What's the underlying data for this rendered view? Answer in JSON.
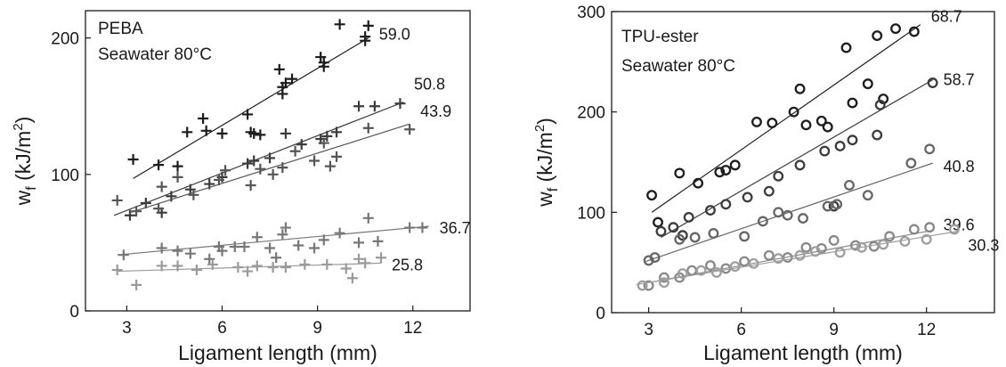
{
  "chart_data": [
    {
      "type": "scatter",
      "panel_text": [
        "PEBA",
        "Seawater 80°C"
      ],
      "xlabel": "Ligament length (mm)",
      "ylabel_main": "w",
      "ylabel_sub": "f",
      "ylabel_unit_pre": " (kJ/m",
      "ylabel_unit_sup": "2",
      "ylabel_unit_post": ")",
      "xlim": [
        1.7,
        13.8
      ],
      "ylim": [
        0,
        220
      ],
      "xticks": [
        3,
        6,
        9,
        12
      ],
      "yticks": [
        0,
        100,
        200
      ],
      "marker": "plus",
      "series": [
        {
          "name": "59.0",
          "color": "#1c1c1c",
          "x": [
            3.2,
            4.0,
            4.6,
            4.9,
            5.4,
            5.5,
            6.0,
            6.8,
            6.9,
            7.0,
            7.2,
            7.8,
            7.9,
            7.9,
            8.0,
            8.2,
            9.1,
            9.2,
            9.2,
            9.7,
            10.5,
            10.5,
            10.6
          ],
          "y": [
            111,
            107,
            106,
            131,
            141,
            132,
            130,
            144,
            131,
            130,
            129,
            177,
            159,
            164,
            167,
            170,
            186,
            182,
            179,
            210,
            201,
            198,
            209
          ],
          "fit": [
            [
              3.2,
              97
            ],
            [
              10.6,
              200
            ]
          ]
        },
        {
          "name": "50.8",
          "color": "#3c3c3c",
          "x": [
            3.1,
            3.6,
            4.1,
            4.4,
            5.0,
            5.6,
            6.0,
            6.8,
            7.0,
            7.5,
            8.0,
            8.5,
            9.1,
            9.3,
            9.6,
            10.3,
            10.8,
            11.6
          ],
          "y": [
            70,
            79,
            72,
            84,
            89,
            93,
            98,
            108,
            110,
            112,
            130,
            122,
            126,
            128,
            131,
            150,
            150,
            152
          ],
          "fit": [
            [
              2.6,
              70
            ],
            [
              11.7,
              153
            ]
          ]
        },
        {
          "name": "43.9",
          "color": "#555555",
          "x": [
            2.7,
            3.3,
            4.0,
            4.1,
            4.6,
            5.1,
            5.9,
            6.1,
            6.9,
            7.2,
            7.6,
            7.9,
            8.3,
            8.9,
            9.2,
            9.4,
            9.6,
            10.6,
            11.9
          ],
          "y": [
            81,
            73,
            75,
            91,
            98,
            85,
            96,
            103,
            92,
            104,
            100,
            105,
            117,
            110,
            123,
            106,
            113,
            134,
            133
          ],
          "fit": [
            [
              3.1,
              72
            ],
            [
              11.9,
              137
            ]
          ]
        },
        {
          "name": "36.7",
          "color": "#777777",
          "x": [
            2.9,
            4.1,
            4.6,
            5.0,
            5.6,
            5.9,
            6.0,
            6.4,
            6.7,
            7.1,
            7.5,
            7.7,
            7.9,
            8.0,
            8.4,
            8.9,
            9.2,
            9.7,
            10.3,
            10.6,
            10.9,
            11.9,
            12.3
          ],
          "y": [
            41,
            46,
            44,
            42,
            38,
            47,
            44,
            47,
            47,
            54,
            46,
            39,
            56,
            61,
            48,
            46,
            52,
            57,
            50,
            68,
            51,
            61,
            61
          ],
          "fit": [
            [
              2.7,
              41
            ],
            [
              12.5,
              62
            ]
          ]
        },
        {
          "name": "25.8",
          "color": "#9a9a9a",
          "x": [
            2.7,
            3.3,
            4.1,
            4.6,
            5.2,
            5.7,
            6.5,
            6.8,
            7.1,
            7.6,
            8.0,
            8.6,
            9.3,
            9.9,
            10.1,
            10.3,
            10.5,
            11.0
          ],
          "y": [
            30,
            19,
            33,
            33,
            30,
            34,
            32,
            29,
            33,
            32,
            32,
            34,
            34,
            31,
            24,
            38,
            35,
            39
          ],
          "fit": [
            [
              2.7,
              29
            ],
            [
              11.0,
              35
            ]
          ]
        }
      ]
    },
    {
      "type": "scatter",
      "panel_text": [
        "TPU-ester",
        "Seawater 80°C"
      ],
      "xlabel": "Ligament length (mm)",
      "ylabel_main": "w",
      "ylabel_sub": "f",
      "ylabel_unit_pre": " (kJ/m",
      "ylabel_unit_sup": "2",
      "ylabel_unit_post": ")",
      "xlim": [
        1.8,
        14.2
      ],
      "ylim": [
        0,
        300
      ],
      "xticks": [
        3,
        6,
        9,
        12
      ],
      "yticks": [
        0,
        100,
        200,
        300
      ],
      "marker": "circle",
      "series": [
        {
          "name": "68.7",
          "color": "#1c1c1c",
          "x": [
            3.1,
            3.3,
            4.0,
            4.6,
            5.3,
            5.5,
            5.8,
            6.5,
            7.0,
            7.7,
            7.9,
            8.1,
            8.6,
            8.8,
            9.4,
            9.6,
            10.1,
            10.4,
            10.6,
            11.0,
            11.6
          ],
          "y": [
            117,
            90,
            139,
            129,
            140,
            142,
            147,
            190,
            189,
            200,
            223,
            187,
            191,
            185,
            264,
            209,
            228,
            276,
            213,
            283,
            280
          ],
          "fit": [
            [
              3.1,
              100
            ],
            [
              11.8,
              287
            ]
          ]
        },
        {
          "name": "58.7",
          "color": "#3c3c3c",
          "x": [
            3.4,
            3.8,
            4.1,
            4.3,
            5.0,
            5.5,
            6.2,
            6.9,
            7.2,
            7.9,
            8.7,
            9.0,
            9.2,
            9.6,
            10.4,
            10.5,
            12.2
          ],
          "y": [
            81,
            85,
            77,
            95,
            102,
            108,
            115,
            121,
            136,
            147,
            161,
            106,
            166,
            172,
            177,
            207,
            229
          ],
          "fit": [
            [
              3.4,
              75
            ],
            [
              12.2,
              232
            ]
          ]
        },
        {
          "name": "40.8",
          "color": "#666666",
          "x": [
            3.0,
            3.2,
            4.0,
            4.5,
            5.1,
            6.1,
            6.7,
            7.2,
            7.5,
            8.0,
            8.8,
            9.1,
            9.5,
            10.1,
            11.5,
            12.1
          ],
          "y": [
            52,
            55,
            73,
            75,
            79,
            76,
            91,
            100,
            97,
            94,
            106,
            108,
            127,
            117,
            149,
            163
          ],
          "fit": [
            [
              2.9,
              51
            ],
            [
              12.2,
              149
            ]
          ]
        },
        {
          "name": "39.6",
          "color": "#888888",
          "x": [
            3.0,
            3.5,
            4.0,
            4.4,
            5.0,
            5.5,
            6.1,
            6.9,
            7.5,
            8.1,
            8.6,
            9.0,
            9.7,
            10.3,
            10.8,
            11.6,
            12.1
          ],
          "y": [
            27,
            35,
            35,
            42,
            47,
            44,
            51,
            57,
            55,
            65,
            64,
            72,
            67,
            66,
            76,
            83,
            85
          ],
          "fit": [
            [
              3.0,
              30
            ],
            [
              12.2,
              82
            ]
          ]
        },
        {
          "name": "30.3",
          "color": "#9e9e9e",
          "x": [
            2.8,
            3.5,
            4.1,
            4.7,
            5.2,
            5.8,
            6.4,
            7.2,
            7.9,
            8.4,
            9.2,
            9.9,
            10.6,
            11.3,
            12.0,
            12.9
          ],
          "y": [
            27,
            30,
            39,
            42,
            40,
            46,
            49,
            54,
            57,
            61,
            60,
            65,
            68,
            71,
            73,
            83
          ],
          "fit": [
            [
              2.6,
              28
            ],
            [
              13.0,
              81
            ]
          ]
        }
      ]
    }
  ]
}
